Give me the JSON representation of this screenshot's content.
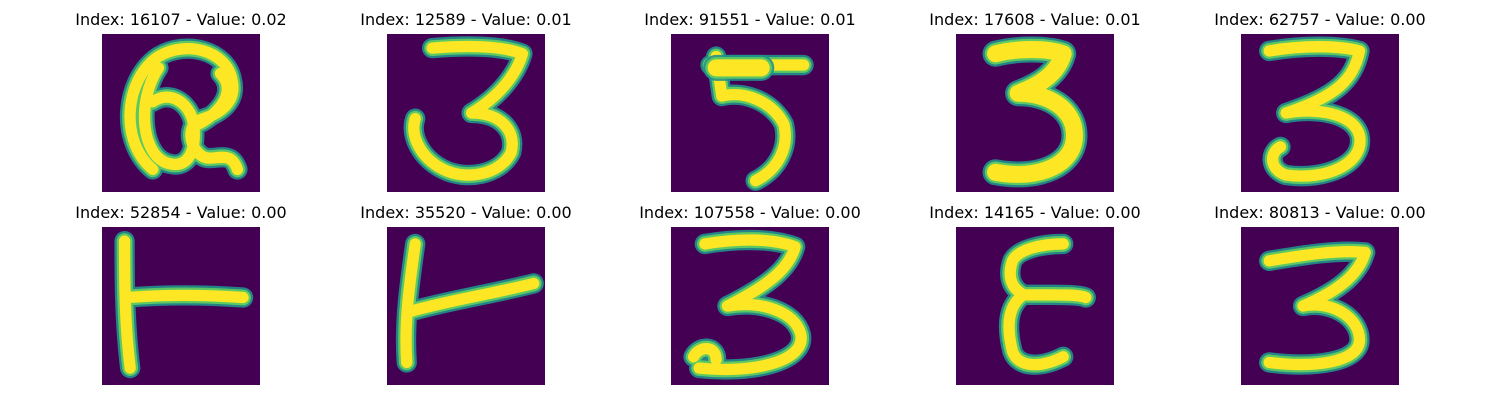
{
  "colors": {
    "background": "#440154",
    "ink_edge": "#21918c",
    "ink_mid": "#5ec962",
    "ink_core": "#fde725"
  },
  "panels": [
    {
      "title": "Index: 16107 - Value: 0.02",
      "glyph": "a-like loop"
    },
    {
      "title": "Index: 12589 - Value: 0.01",
      "glyph": "3"
    },
    {
      "title": "Index: 91551 - Value: 0.01",
      "glyph": "5"
    },
    {
      "title": "Index: 17608 - Value: 0.01",
      "glyph": "3"
    },
    {
      "title": "Index: 62757 - Value: 0.00",
      "glyph": "3"
    },
    {
      "title": "Index: 52854 - Value: 0.00",
      "glyph": "T-like stroke"
    },
    {
      "title": "Index: 35520 - Value: 0.00",
      "glyph": "T-like stroke"
    },
    {
      "title": "Index: 107558 - Value: 0.00",
      "glyph": "3"
    },
    {
      "title": "Index: 14165 - Value: 0.00",
      "glyph": "E-like stroke"
    },
    {
      "title": "Index: 80813 - Value: 0.00",
      "glyph": "3"
    }
  ]
}
